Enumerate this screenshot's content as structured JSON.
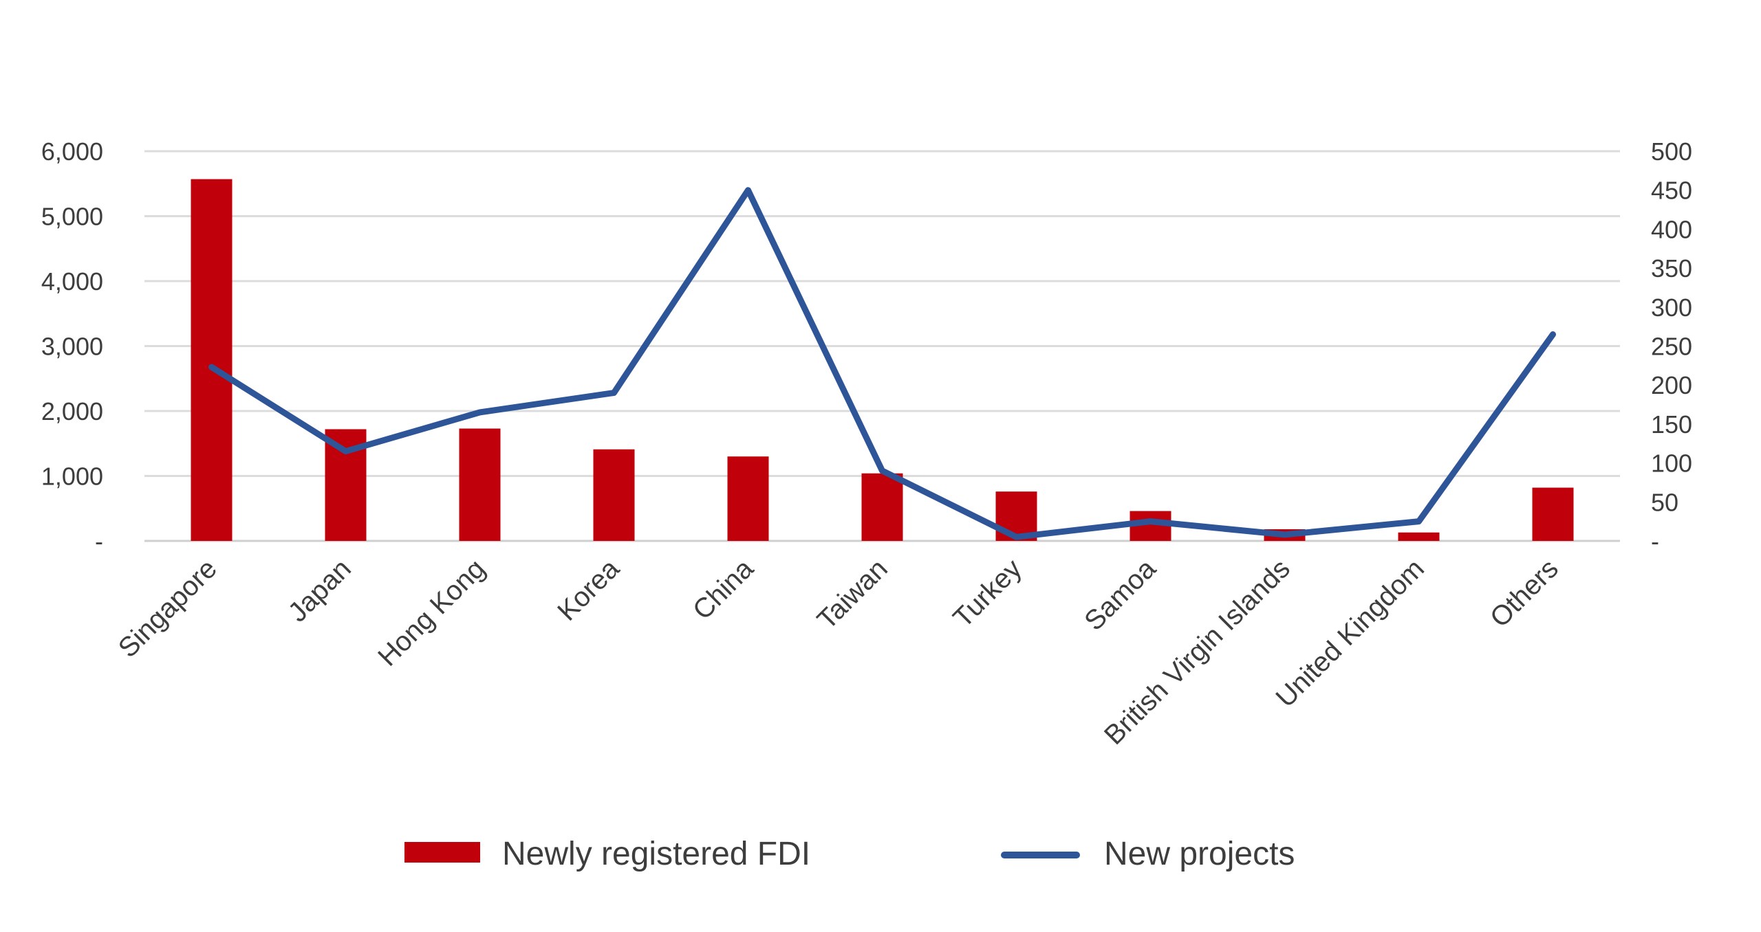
{
  "chart_data": {
    "type": "bar",
    "categories": [
      "Singapore",
      "Japan",
      "Hong Kong",
      "Korea",
      "China",
      "Taiwan",
      "Turkey",
      "Samoa",
      "British Virgin Islands",
      "United Kingdom",
      "Others"
    ],
    "series": [
      {
        "name": "Newly registered FDI",
        "type": "bar",
        "axis": "left",
        "color": "#c0000b",
        "values": [
          5570,
          1720,
          1730,
          1410,
          1300,
          1040,
          760,
          460,
          180,
          130,
          820
        ]
      },
      {
        "name": "New projects",
        "type": "line",
        "axis": "right",
        "color": "#2e5597",
        "values": [
          223,
          115,
          165,
          190,
          450,
          90,
          5,
          25,
          8,
          25,
          265
        ]
      }
    ],
    "y_left": {
      "ylim": [
        0,
        6000
      ],
      "ticks": [
        0,
        1000,
        2000,
        3000,
        4000,
        5000,
        6000
      ],
      "tick_labels": [
        "-",
        "1,000",
        "2,000",
        "3,000",
        "4,000",
        "5,000",
        "6,000"
      ]
    },
    "y_right": {
      "ylim": [
        0,
        500
      ],
      "ticks": [
        0,
        50,
        100,
        150,
        200,
        250,
        300,
        350,
        400,
        450,
        500
      ],
      "tick_labels": [
        "-",
        "50",
        "100",
        "150",
        "200",
        "250",
        "300",
        "350",
        "400",
        "450",
        "500"
      ]
    },
    "grid": true,
    "legend_position": "bottom"
  }
}
